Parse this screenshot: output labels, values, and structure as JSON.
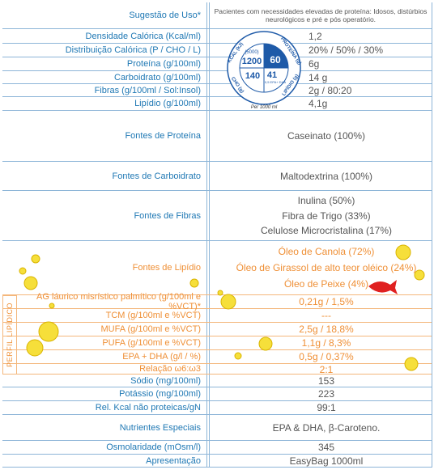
{
  "rows": [
    {
      "label": "Sugestão de Uso*",
      "values": [
        "Pacientes com necessidades elevadas de proteína: Idosos, distúrbios neurológicos e pré e pós operatório."
      ]
    },
    {
      "label": "Densidade Calórica (Kcal/ml)",
      "values": [
        "1,2"
      ]
    },
    {
      "label": "Distribuição Calórica (P / CHO / L)",
      "values": [
        "20% / 50% / 30%"
      ]
    },
    {
      "label": "Proteína (g/100ml)",
      "values": [
        "6g"
      ]
    },
    {
      "label": "Carboidrato (g/100ml)",
      "values": [
        "14 g"
      ]
    },
    {
      "label": "Fibras (g/100ml / Sol:Insol)",
      "values": [
        "2g / 80:20"
      ]
    },
    {
      "label": "Lipídio (g/100ml)",
      "values": [
        "4,1g"
      ]
    },
    {
      "label": "Fontes de Proteína",
      "values": [
        "Caseinato (100%)"
      ]
    },
    {
      "label": "Fontes de Carboidrato",
      "values": [
        "Maltodextrina (100%)"
      ]
    },
    {
      "label": "Fontes de Fibras",
      "values": [
        "Inulina (50%)",
        "Fibra de Trigo (33%)",
        "Celulose Microcristalina (17%)"
      ]
    },
    {
      "label": "Fontes de Lipídio",
      "values": [
        "Óleo de Canola (72%)",
        "Óleo de Girassol de alto teor oléico (24%)",
        "Óleo de Peixe (4%)"
      ]
    },
    {
      "label": "AG láurico misrístico palmítico (g/100ml e %VCT)*",
      "values": [
        "0,21g / 1,5%"
      ]
    },
    {
      "label": "TCM (g/100ml e %VCT)",
      "values": [
        "---"
      ]
    },
    {
      "label": "MUFA (g/100ml e %VCT)",
      "values": [
        "2,5g / 18,8%"
      ]
    },
    {
      "label": "PUFA (g/100ml e %VCT)",
      "values": [
        "1,1g / 8,3%"
      ]
    },
    {
      "label": "EPA + DHA (g/l / %)",
      "values": [
        "0,5g / 0,37%"
      ]
    },
    {
      "label": "Relação ω6:ω3",
      "values": [
        "2:1"
      ]
    },
    {
      "label": "Sódio (mg/100ml)",
      "values": [
        "153"
      ]
    },
    {
      "label": "Potássio (mg/100ml)",
      "values": [
        "223"
      ]
    },
    {
      "label": "Rel. Kcal não proteicas/gN",
      "values": [
        "99:1"
      ]
    },
    {
      "label": "Nutrientes Especiais",
      "values": [
        "EPA & DHA, β-Caroteno."
      ]
    },
    {
      "label": "Osmolaridade (mOsm/l)",
      "values": [
        "345"
      ]
    },
    {
      "label": "Apresentação",
      "values": [
        "EasyBag 1000ml"
      ]
    }
  ],
  "lipid_profile_label": "PERFIL LIPÍDICO",
  "badge": {
    "kcal_label": "KCAL (kJ)",
    "kj": "(5000)",
    "kcal": 1200,
    "protein_label": "PROTEÍNA (g)",
    "protein": 60,
    "cho_label": "CHO (g)",
    "cho": 140,
    "lipid_label": "LIPÍDIO (g)",
    "lipid": 41,
    "epa": "0,5 EPA+ DHA",
    "per": "Per 1000 ml"
  }
}
